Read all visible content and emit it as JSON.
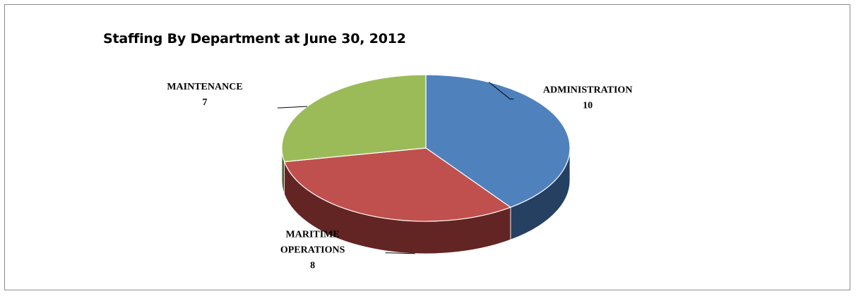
{
  "chart_data": {
    "type": "pie",
    "title": "Staffing By Department at June 30, 2012",
    "three_d": true,
    "slices": [
      {
        "label": "ADMINISTRATION",
        "value": 10,
        "color": "#4f81bd",
        "side_color": "#264061"
      },
      {
        "label": "MARITIME OPERATIONS",
        "value": 8,
        "color": "#c0504d",
        "side_color": "#632523"
      },
      {
        "label": "MAINTENANCE",
        "value": 7,
        "color": "#9bbb59",
        "side_color": "#4f6228"
      }
    ],
    "data_labels": "category and value, outside with leader lines",
    "legend": "none"
  }
}
